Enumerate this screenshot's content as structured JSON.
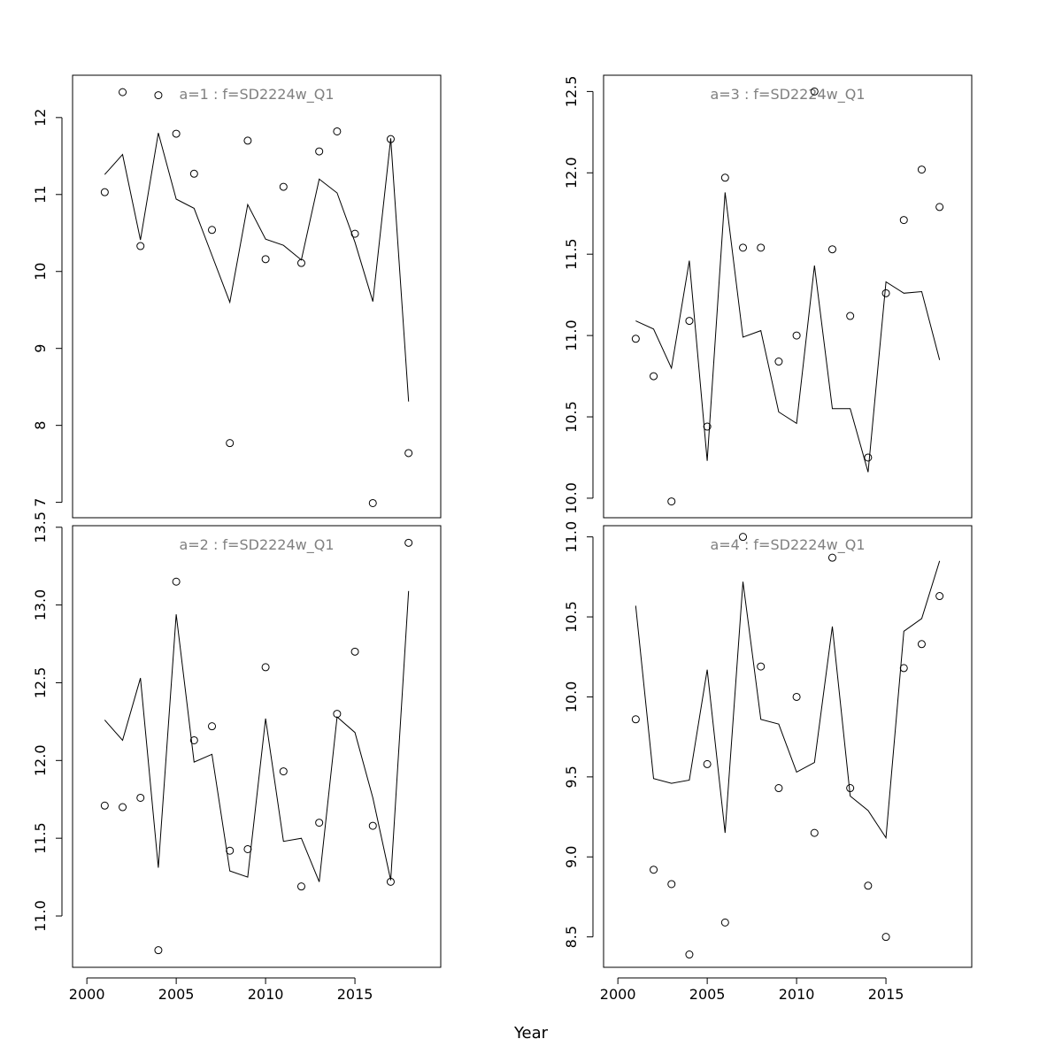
{
  "chart_data": {
    "type": "scatter",
    "xlabel": "Year",
    "x_ticks": [
      2000,
      2005,
      2010,
      2015
    ],
    "xlim": [
      1999.2,
      2019.8
    ],
    "colors": {
      "points": "#000000",
      "line": "#000000",
      "title": "#808080"
    },
    "panels": [
      {
        "title": "a=1  :  f=SD2224w_Q1",
        "ylim": [
          6.8,
          12.55
        ],
        "y_ticks": [
          7,
          8,
          9,
          10,
          11,
          12
        ],
        "y_tick_labels": [
          "7",
          "8",
          "9",
          "10",
          "11",
          "12"
        ],
        "points": [
          {
            "x": 2001,
            "y": 11.03
          },
          {
            "x": 2002,
            "y": 12.33
          },
          {
            "x": 2003,
            "y": 10.33
          },
          {
            "x": 2004,
            "y": 12.29
          },
          {
            "x": 2005,
            "y": 11.79
          },
          {
            "x": 2006,
            "y": 11.27
          },
          {
            "x": 2007,
            "y": 10.54
          },
          {
            "x": 2008,
            "y": 7.77
          },
          {
            "x": 2009,
            "y": 11.7
          },
          {
            "x": 2010,
            "y": 10.16
          },
          {
            "x": 2011,
            "y": 11.1
          },
          {
            "x": 2012,
            "y": 10.11
          },
          {
            "x": 2013,
            "y": 11.56
          },
          {
            "x": 2014,
            "y": 11.82
          },
          {
            "x": 2015,
            "y": 10.49
          },
          {
            "x": 2016,
            "y": 6.99
          },
          {
            "x": 2017,
            "y": 11.72
          },
          {
            "x": 2018,
            "y": 7.64
          }
        ],
        "fitted": [
          {
            "x": 2001,
            "y": 11.26
          },
          {
            "x": 2002,
            "y": 11.52
          },
          {
            "x": 2003,
            "y": 10.41
          },
          {
            "x": 2004,
            "y": 11.8
          },
          {
            "x": 2005,
            "y": 10.94
          },
          {
            "x": 2006,
            "y": 10.82
          },
          {
            "x": 2007,
            "y": 10.21
          },
          {
            "x": 2008,
            "y": 9.6
          },
          {
            "x": 2009,
            "y": 10.87
          },
          {
            "x": 2010,
            "y": 10.42
          },
          {
            "x": 2011,
            "y": 10.34
          },
          {
            "x": 2012,
            "y": 10.15
          },
          {
            "x": 2013,
            "y": 11.2
          },
          {
            "x": 2014,
            "y": 11.02
          },
          {
            "x": 2015,
            "y": 10.38
          },
          {
            "x": 2016,
            "y": 9.61
          },
          {
            "x": 2017,
            "y": 11.73
          },
          {
            "x": 2018,
            "y": 8.31
          }
        ]
      },
      {
        "title": "a=3  :  f=SD2224w_Q1",
        "ylim": [
          9.88,
          12.6
        ],
        "y_ticks": [
          10.0,
          10.5,
          11.0,
          11.5,
          12.0,
          12.5
        ],
        "y_tick_labels": [
          "10.0",
          "10.5",
          "11.0",
          "11.5",
          "12.0",
          "12.5"
        ],
        "points": [
          {
            "x": 2001,
            "y": 10.98
          },
          {
            "x": 2002,
            "y": 10.75
          },
          {
            "x": 2003,
            "y": 9.98
          },
          {
            "x": 2004,
            "y": 11.09
          },
          {
            "x": 2005,
            "y": 10.44
          },
          {
            "x": 2006,
            "y": 11.97
          },
          {
            "x": 2007,
            "y": 11.54
          },
          {
            "x": 2008,
            "y": 11.54
          },
          {
            "x": 2009,
            "y": 10.84
          },
          {
            "x": 2010,
            "y": 11.0
          },
          {
            "x": 2011,
            "y": 12.5
          },
          {
            "x": 2012,
            "y": 11.53
          },
          {
            "x": 2013,
            "y": 11.12
          },
          {
            "x": 2014,
            "y": 10.25
          },
          {
            "x": 2015,
            "y": 11.26
          },
          {
            "x": 2016,
            "y": 11.71
          },
          {
            "x": 2017,
            "y": 12.02
          },
          {
            "x": 2018,
            "y": 11.79
          }
        ],
        "fitted": [
          {
            "x": 2001,
            "y": 11.09
          },
          {
            "x": 2002,
            "y": 11.04
          },
          {
            "x": 2003,
            "y": 10.8
          },
          {
            "x": 2004,
            "y": 11.46
          },
          {
            "x": 2005,
            "y": 10.23
          },
          {
            "x": 2006,
            "y": 11.88
          },
          {
            "x": 2007,
            "y": 10.99
          },
          {
            "x": 2008,
            "y": 11.03
          },
          {
            "x": 2009,
            "y": 10.53
          },
          {
            "x": 2010,
            "y": 10.46
          },
          {
            "x": 2011,
            "y": 11.43
          },
          {
            "x": 2012,
            "y": 10.55
          },
          {
            "x": 2013,
            "y": 10.55
          },
          {
            "x": 2014,
            "y": 10.16
          },
          {
            "x": 2015,
            "y": 11.33
          },
          {
            "x": 2016,
            "y": 11.26
          },
          {
            "x": 2017,
            "y": 11.27
          },
          {
            "x": 2018,
            "y": 10.85
          }
        ]
      },
      {
        "title": "a=2  :  f=SD2224w_Q1",
        "ylim": [
          10.67,
          13.51
        ],
        "y_ticks": [
          11.0,
          11.5,
          12.0,
          12.5,
          13.0,
          13.5
        ],
        "y_tick_labels": [
          "11.0",
          "11.5",
          "12.0",
          "12.5",
          "13.0",
          "13.5"
        ],
        "points": [
          {
            "x": 2001,
            "y": 11.71
          },
          {
            "x": 2002,
            "y": 11.7
          },
          {
            "x": 2003,
            "y": 11.76
          },
          {
            "x": 2004,
            "y": 10.78
          },
          {
            "x": 2005,
            "y": 13.15
          },
          {
            "x": 2006,
            "y": 12.13
          },
          {
            "x": 2007,
            "y": 12.22
          },
          {
            "x": 2008,
            "y": 11.42
          },
          {
            "x": 2009,
            "y": 11.43
          },
          {
            "x": 2010,
            "y": 12.6
          },
          {
            "x": 2011,
            "y": 11.93
          },
          {
            "x": 2012,
            "y": 11.19
          },
          {
            "x": 2013,
            "y": 11.6
          },
          {
            "x": 2014,
            "y": 12.3
          },
          {
            "x": 2015,
            "y": 12.7
          },
          {
            "x": 2016,
            "y": 11.58
          },
          {
            "x": 2017,
            "y": 11.22
          },
          {
            "x": 2018,
            "y": 13.4
          }
        ],
        "fitted": [
          {
            "x": 2001,
            "y": 12.26
          },
          {
            "x": 2002,
            "y": 12.13
          },
          {
            "x": 2003,
            "y": 12.53
          },
          {
            "x": 2004,
            "y": 11.31
          },
          {
            "x": 2005,
            "y": 12.94
          },
          {
            "x": 2006,
            "y": 11.99
          },
          {
            "x": 2007,
            "y": 12.04
          },
          {
            "x": 2008,
            "y": 11.29
          },
          {
            "x": 2009,
            "y": 11.25
          },
          {
            "x": 2010,
            "y": 12.27
          },
          {
            "x": 2011,
            "y": 11.48
          },
          {
            "x": 2012,
            "y": 11.5
          },
          {
            "x": 2013,
            "y": 11.22
          },
          {
            "x": 2014,
            "y": 12.28
          },
          {
            "x": 2015,
            "y": 12.18
          },
          {
            "x": 2016,
            "y": 11.76
          },
          {
            "x": 2017,
            "y": 11.23
          },
          {
            "x": 2018,
            "y": 13.09
          }
        ]
      },
      {
        "title": "a=4  :  f=SD2224w_Q1",
        "ylim": [
          8.31,
          11.07
        ],
        "y_ticks": [
          8.5,
          9.0,
          9.5,
          10.0,
          10.5,
          11.0
        ],
        "y_tick_labels": [
          "8.5",
          "9.0",
          "9.5",
          "10.0",
          "10.5",
          "11.0"
        ],
        "points": [
          {
            "x": 2001,
            "y": 9.86
          },
          {
            "x": 2002,
            "y": 8.92
          },
          {
            "x": 2003,
            "y": 8.83
          },
          {
            "x": 2004,
            "y": 8.39
          },
          {
            "x": 2005,
            "y": 9.58
          },
          {
            "x": 2006,
            "y": 8.59
          },
          {
            "x": 2007,
            "y": 11.0
          },
          {
            "x": 2008,
            "y": 10.19
          },
          {
            "x": 2009,
            "y": 9.43
          },
          {
            "x": 2010,
            "y": 10.0
          },
          {
            "x": 2011,
            "y": 9.15
          },
          {
            "x": 2012,
            "y": 10.87
          },
          {
            "x": 2013,
            "y": 9.43
          },
          {
            "x": 2014,
            "y": 8.82
          },
          {
            "x": 2015,
            "y": 8.5
          },
          {
            "x": 2016,
            "y": 10.18
          },
          {
            "x": 2017,
            "y": 10.33
          },
          {
            "x": 2018,
            "y": 10.63
          }
        ],
        "fitted": [
          {
            "x": 2001,
            "y": 10.57
          },
          {
            "x": 2002,
            "y": 9.49
          },
          {
            "x": 2003,
            "y": 9.46
          },
          {
            "x": 2004,
            "y": 9.48
          },
          {
            "x": 2005,
            "y": 10.17
          },
          {
            "x": 2006,
            "y": 9.15
          },
          {
            "x": 2007,
            "y": 10.72
          },
          {
            "x": 2008,
            "y": 9.86
          },
          {
            "x": 2009,
            "y": 9.83
          },
          {
            "x": 2010,
            "y": 9.53
          },
          {
            "x": 2011,
            "y": 9.59
          },
          {
            "x": 2012,
            "y": 10.44
          },
          {
            "x": 2013,
            "y": 9.38
          },
          {
            "x": 2014,
            "y": 9.29
          },
          {
            "x": 2015,
            "y": 9.12
          },
          {
            "x": 2016,
            "y": 10.41
          },
          {
            "x": 2017,
            "y": 10.49
          },
          {
            "x": 2018,
            "y": 10.85
          }
        ]
      }
    ]
  }
}
